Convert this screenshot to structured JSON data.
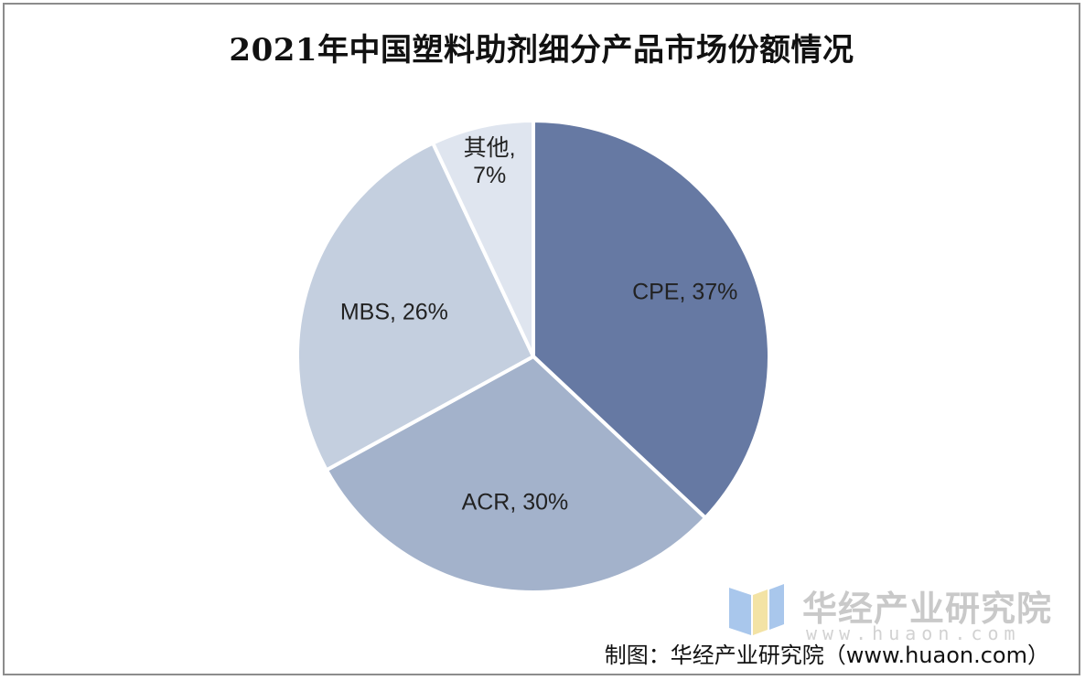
{
  "chart_data": {
    "type": "pie",
    "title": "2021年中国塑料助剂细分产品市场份额情况",
    "slices": [
      {
        "label": "CPE",
        "value": 37,
        "display": "CPE, 37%",
        "color": "#6679a3"
      },
      {
        "label": "ACR",
        "value": 30,
        "display": "ACR, 30%",
        "color": "#a3b2cb"
      },
      {
        "label": "MBS",
        "value": 26,
        "display": "MBS, 26%",
        "color": "#c4cfdf"
      },
      {
        "label": "其他",
        "value": 7,
        "display_lines": [
          "其他,",
          "7%"
        ],
        "color": "#dfe5ef"
      }
    ],
    "start": "12 o'clock",
    "direction": "clockwise"
  },
  "watermark": {
    "text": "华经产业研究院",
    "url": "www.huaon.com"
  },
  "source": "制图：华经产业研究院（www.huaon.com）"
}
